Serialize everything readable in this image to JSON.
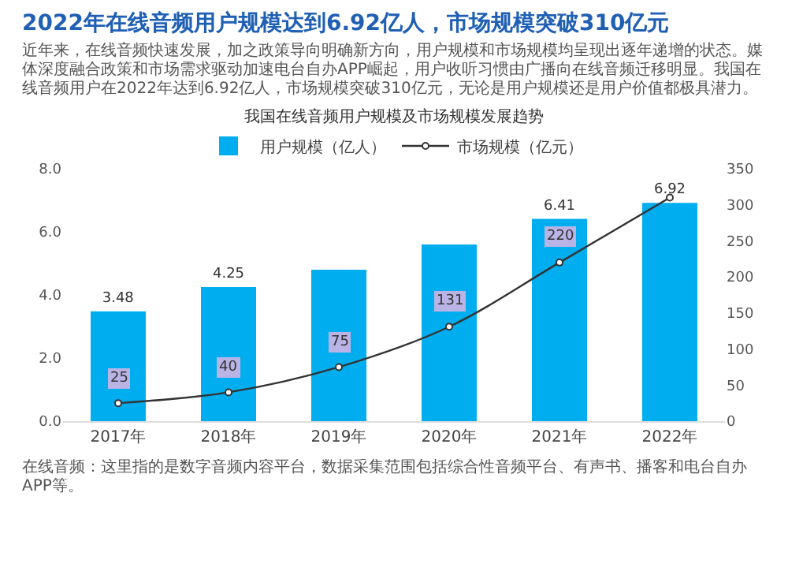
{
  "chart_data": {
    "type": "bar",
    "title": "2022年在线音频用户规模达到6.92亿人，市场规模突破310亿元",
    "subtitle": "近年来，在线音频快速发展，加之政策导向明确新方向，用户规模和市场规模均呈现出逐年递增的状态。媒体深度融合政策和市场需求驱动加速电台自办APP崛起，用户收听习惯由广播向在线音频迁移明显。我国在线音频用户在2022年达到6.92亿人，市场规模突破310亿元，无论是用户规模还是用户价值都极具潜力。",
    "annotations": [
      "我国在线音频用户规模及市场规模发展趋势",
      "在线音频：这里指的是数字音频内容平台，数据采集范围包括综合性音频平台、有声书、播客和电台自办APP等。"
    ],
    "categories": [
      "2017年",
      "2018年",
      "2019年",
      "2020年",
      "2021年",
      "2022年"
    ],
    "series": [
      {
        "name": "用户规模（亿人）",
        "color": "#00aeef",
        "values": [
          3.48,
          4.25,
          4.8,
          5.6,
          6.41,
          6.92
        ],
        "value_labels": [
          "3.48",
          "4.25",
          null,
          null,
          "6.41",
          "6.92"
        ]
      },
      {
        "name": "市场规模（亿元）",
        "type": "line",
        "axis": "y2",
        "color": "#333333",
        "values": [
          25,
          40,
          75,
          131,
          220,
          310
        ],
        "value_labels": [
          "25",
          "40",
          "75",
          "131",
          "220",
          null
        ]
      }
    ],
    "ylim": [
      0,
      8
    ],
    "yticks": [
      {
        "value": 0,
        "label": "0.0"
      },
      {
        "value": 2,
        "label": "2.0"
      },
      {
        "value": 4,
        "label": "4.0"
      },
      {
        "value": 6,
        "label": "6.0"
      },
      {
        "value": 8,
        "label": "8.0"
      }
    ],
    "y2lim": [
      0,
      350
    ],
    "y2ticks": [
      0,
      50,
      100,
      150,
      200,
      250,
      300,
      350
    ],
    "legend": "top",
    "marker": "circle"
  }
}
